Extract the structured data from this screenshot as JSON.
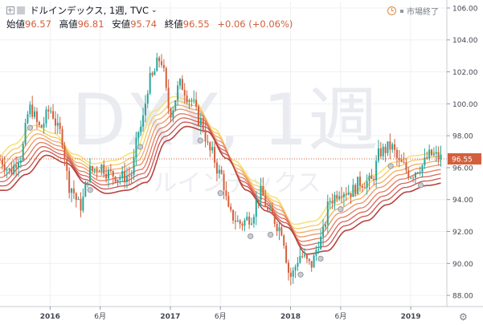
{
  "header": {
    "symbol_title": "ドルインデックス, 1週, TVC",
    "ohlc": [
      {
        "label": "始値",
        "value": "96.57"
      },
      {
        "label": "高値",
        "value": "96.81"
      },
      {
        "label": "安値",
        "value": "95.74"
      },
      {
        "label": "終値",
        "value": "96.55"
      }
    ],
    "change": "+0.06 (+0.06%)",
    "market_status": "市場終了"
  },
  "watermark": {
    "big": "DXY, 1週",
    "small": "ドルインデックス"
  },
  "colors": {
    "down": "#d35f3c",
    "ribbon": [
      "#f7e27a",
      "#f5c86a",
      "#f2ae66",
      "#ee9464",
      "#e37b5f",
      "#d7665a",
      "#c85450",
      "#b8443e"
    ],
    "price_line": "#d35f3c",
    "grid": "#eef0f3"
  },
  "settings_icon": "gear-icon",
  "chart_data": {
    "type": "candlestick",
    "y_axis": {
      "ticks": [
        "106.00",
        "104.00",
        "102.00",
        "100.00",
        "98.00",
        "96.00",
        "94.00",
        "92.00",
        "90.00",
        "88.00"
      ],
      "ylim": [
        87.3,
        106.4
      ]
    },
    "x_axis": {
      "ticks": [
        {
          "date": "2016-01",
          "label": "2016",
          "bold": true
        },
        {
          "date": "2016-06",
          "label": "6月",
          "bold": false
        },
        {
          "date": "2017-01",
          "label": "2017",
          "bold": true
        },
        {
          "date": "2017-06",
          "label": "6月",
          "bold": false
        },
        {
          "date": "2018-01",
          "label": "2018",
          "bold": true
        },
        {
          "date": "2018-06",
          "label": "6月",
          "bold": false
        },
        {
          "date": "2019-01",
          "label": "2019",
          "bold": true
        }
      ],
      "range": [
        "2015-08",
        "2019-04"
      ]
    },
    "last_price": {
      "value": 96.55,
      "label": "96.55"
    },
    "price_path": [
      [
        "2015-08",
        96.5
      ],
      [
        "2015-09",
        95.8
      ],
      [
        "2015-10",
        96.7
      ],
      [
        "2015-11",
        99.7
      ],
      [
        "2015-12",
        98.5
      ],
      [
        "2016-01",
        99.6
      ],
      [
        "2016-02",
        98.2
      ],
      [
        "2016-03",
        94.8
      ],
      [
        "2016-04",
        93.6
      ],
      [
        "2016-05",
        95.8
      ],
      [
        "2016-06",
        96.1
      ],
      [
        "2016-07",
        95.6
      ],
      [
        "2016-08",
        95.4
      ],
      [
        "2016-09",
        95.5
      ],
      [
        "2016-10",
        98.5
      ],
      [
        "2016-11",
        101.5
      ],
      [
        "2016-12",
        102.8
      ],
      [
        "2017-01",
        99.5
      ],
      [
        "2017-02",
        101.2
      ],
      [
        "2017-03",
        100.3
      ],
      [
        "2017-04",
        98.9
      ],
      [
        "2017-05",
        97.0
      ],
      [
        "2017-06",
        95.6
      ],
      [
        "2017-07",
        93.0
      ],
      [
        "2017-08",
        92.5
      ],
      [
        "2017-09",
        92.9
      ],
      [
        "2017-10",
        94.4
      ],
      [
        "2017-11",
        93.0
      ],
      [
        "2017-12",
        92.2
      ],
      [
        "2018-01",
        89.2
      ],
      [
        "2018-02",
        90.5
      ],
      [
        "2018-03",
        89.9
      ],
      [
        "2018-04",
        91.5
      ],
      [
        "2018-05",
        94.0
      ],
      [
        "2018-06",
        94.6
      ],
      [
        "2018-07",
        94.5
      ],
      [
        "2018-08",
        95.1
      ],
      [
        "2018-09",
        95.1
      ],
      [
        "2018-10",
        97.0
      ],
      [
        "2018-11",
        97.3
      ],
      [
        "2018-12",
        96.2
      ],
      [
        "2019-01",
        95.6
      ],
      [
        "2019-02",
        96.1
      ],
      [
        "2019-03",
        96.8
      ],
      [
        "2019-04",
        96.6
      ]
    ],
    "ribbon_center_path": [
      [
        "2015-08",
        95.5
      ],
      [
        "2015-10",
        96.5
      ],
      [
        "2015-12",
        97.7
      ],
      [
        "2016-02",
        97.2
      ],
      [
        "2016-04",
        95.9
      ],
      [
        "2016-06",
        95.3
      ],
      [
        "2016-08",
        95.5
      ],
      [
        "2016-10",
        96.0
      ],
      [
        "2016-12",
        98.6
      ],
      [
        "2017-02",
        99.5
      ],
      [
        "2017-04",
        99.2
      ],
      [
        "2017-06",
        97.5
      ],
      [
        "2017-08",
        95.5
      ],
      [
        "2017-10",
        94.2
      ],
      [
        "2017-12",
        93.2
      ],
      [
        "2018-02",
        91.5
      ],
      [
        "2018-04",
        91.7
      ],
      [
        "2018-06",
        93.0
      ],
      [
        "2018-08",
        93.6
      ],
      [
        "2018-10",
        94.6
      ],
      [
        "2018-12",
        95.4
      ],
      [
        "2019-02",
        95.8
      ],
      [
        "2019-04",
        96.0
      ]
    ],
    "ribbon_offsets": [
      0.95,
      0.68,
      0.42,
      0.16,
      -0.12,
      -0.38,
      -0.64,
      -0.92
    ],
    "event_markers": [
      "2015-11",
      "2016-05",
      "2016-10",
      "2017-04",
      "2017-06",
      "2017-09",
      "2017-11",
      "2018-02",
      "2018-04",
      "2018-06",
      "2018-11",
      "2019-02"
    ]
  }
}
